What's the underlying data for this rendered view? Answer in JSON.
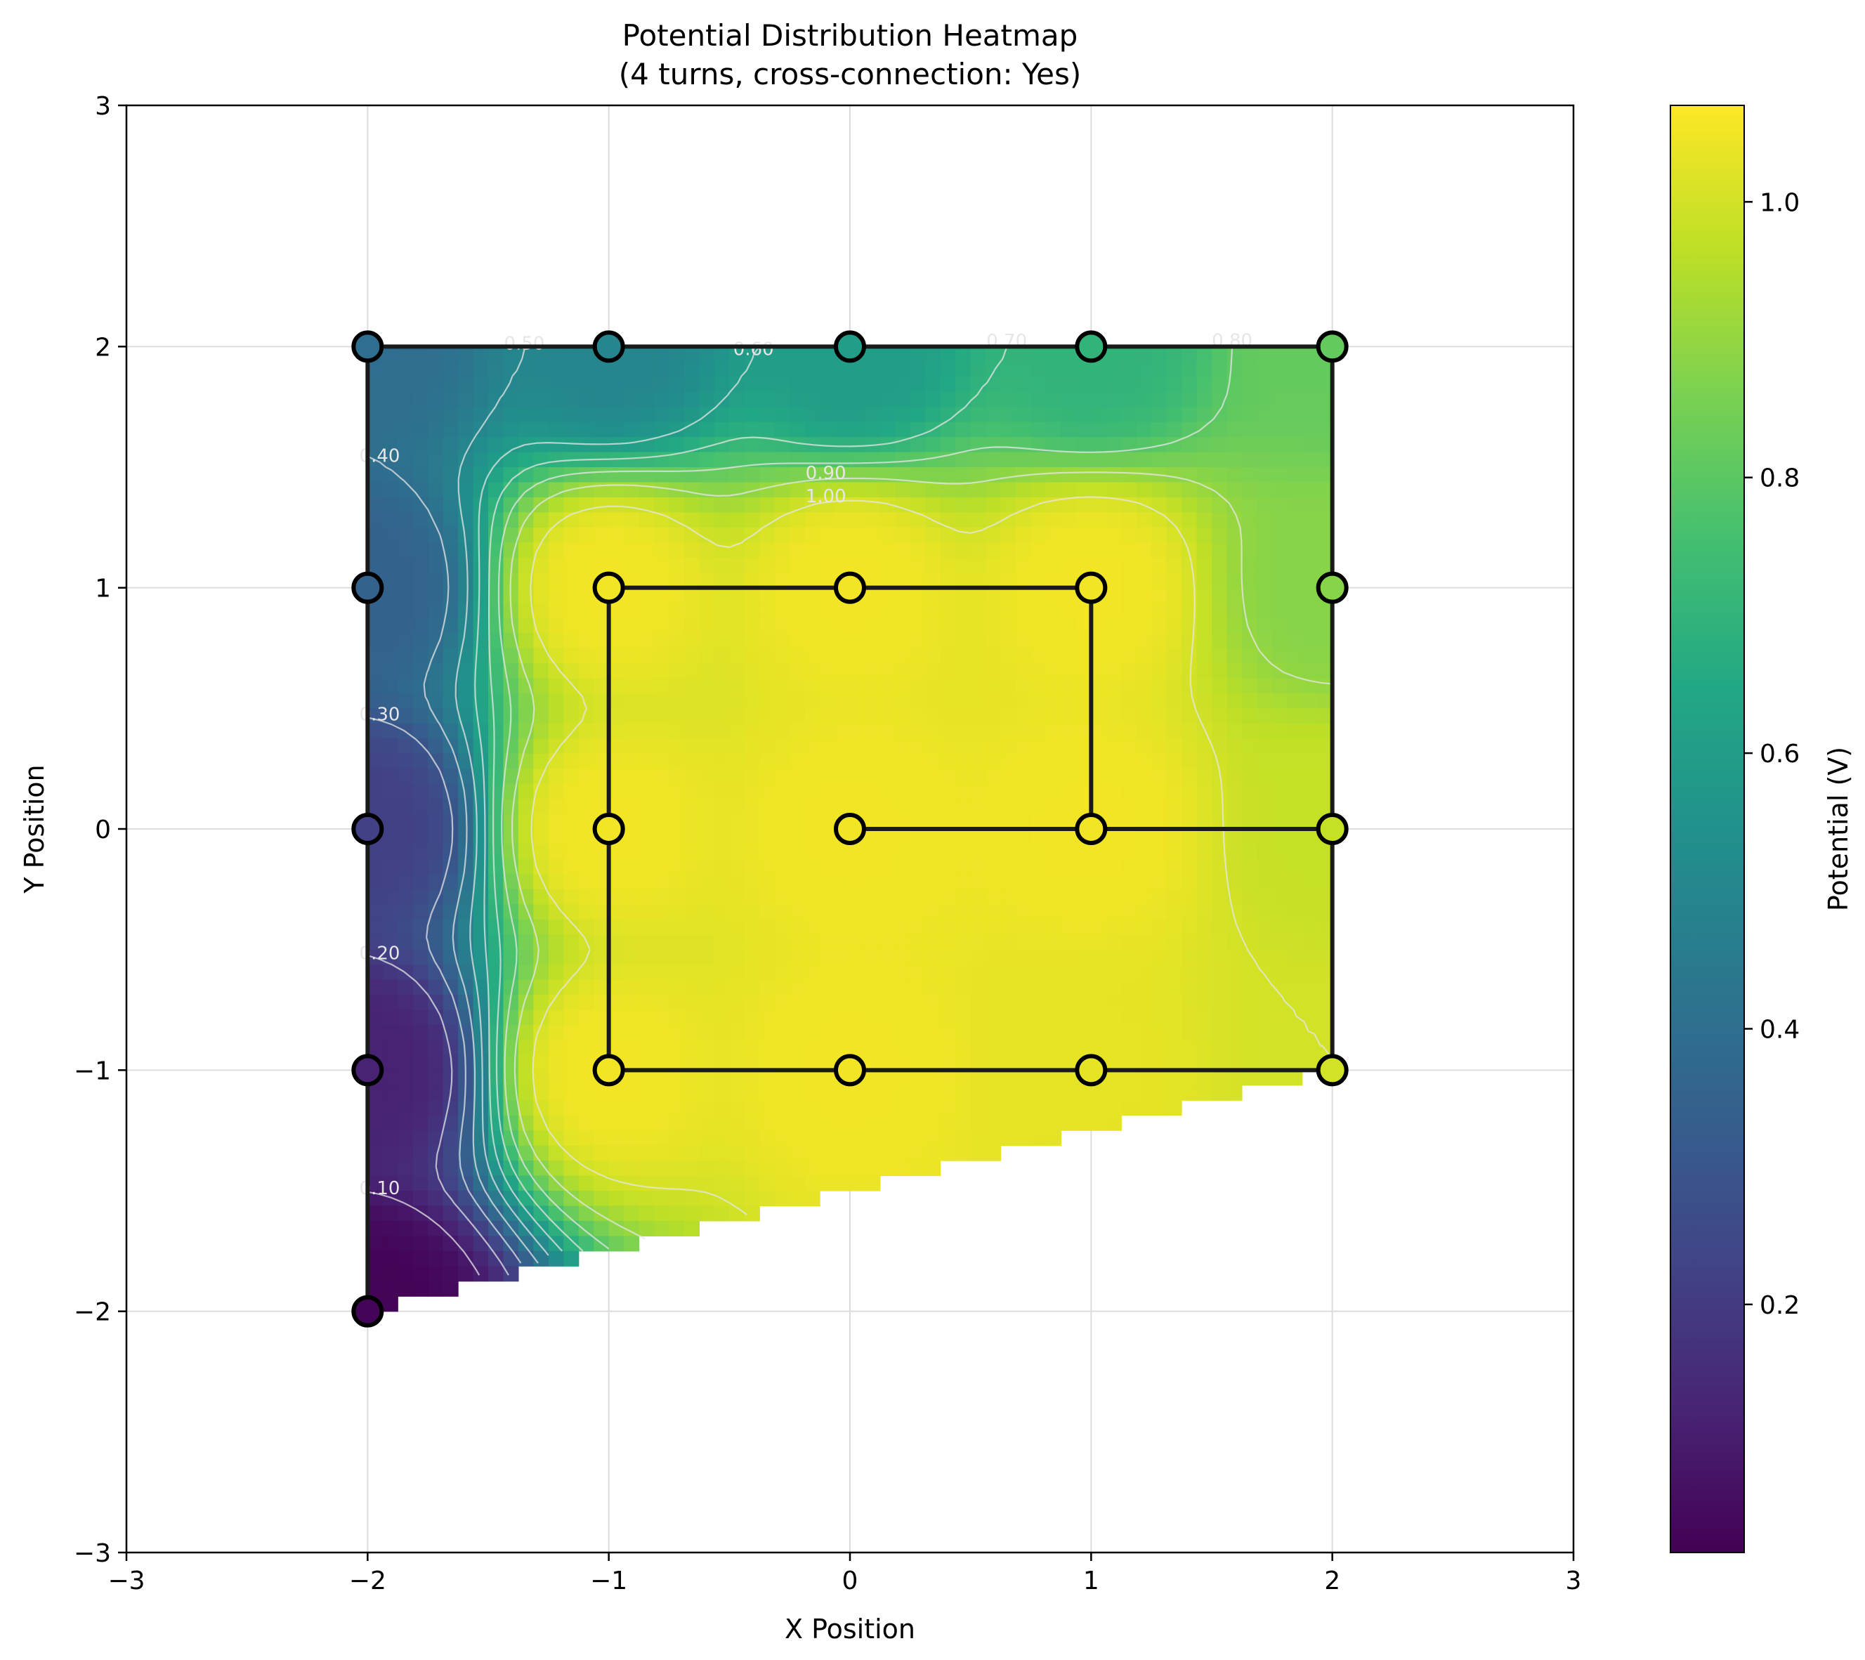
{
  "chart_data": {
    "type": "heatmap",
    "title": "Potential Distribution Heatmap",
    "subtitle": "(4 turns, cross-connection: Yes)",
    "xlabel": "X Position",
    "ylabel": "Y Position",
    "xlim": [
      -3,
      3
    ],
    "ylim": [
      -3,
      3
    ],
    "xticks": [
      -3,
      -2,
      -1,
      0,
      1,
      2,
      3
    ],
    "yticks": [
      -3,
      -2,
      -1,
      0,
      1,
      2,
      3
    ],
    "xtick_labels": [
      "−3",
      "−2",
      "−1",
      "0",
      "1",
      "2",
      "3"
    ],
    "ytick_labels": [
      "−3",
      "−2",
      "−1",
      "0",
      "1",
      "2",
      "3"
    ],
    "grid": true,
    "colormap": "viridis",
    "colorbar": {
      "label": "Potential (V)",
      "range": [
        0.02,
        1.07
      ],
      "ticks": [
        0.2,
        0.4,
        0.6,
        0.8,
        1.0
      ],
      "tick_labels": [
        "0.2",
        "0.4",
        "0.6",
        "0.8",
        "1.0"
      ]
    },
    "contour_levels": [
      {
        "label": "0.10",
        "value": 0.1
      },
      {
        "label": "0.20",
        "value": 0.2
      },
      {
        "label": "0.30",
        "value": 0.3
      },
      {
        "label": "0.40",
        "value": 0.4
      },
      {
        "label": "0.50",
        "value": 0.5
      },
      {
        "label": "0.60",
        "value": 0.6
      },
      {
        "label": "0.70",
        "value": 0.7
      },
      {
        "label": "0.80",
        "value": 0.8
      },
      {
        "label": "0.90",
        "value": 0.9
      },
      {
        "label": "1.00",
        "value": 1.0
      }
    ],
    "nodes": [
      {
        "x": -2,
        "y": 2,
        "v": 0.4
      },
      {
        "x": -1,
        "y": 2,
        "v": 0.5
      },
      {
        "x": 0,
        "y": 2,
        "v": 0.6
      },
      {
        "x": 1,
        "y": 2,
        "v": 0.7
      },
      {
        "x": 2,
        "y": 2,
        "v": 0.82
      },
      {
        "x": -2,
        "y": 1,
        "v": 0.35
      },
      {
        "x": -1,
        "y": 1,
        "v": 1.05
      },
      {
        "x": 0,
        "y": 1,
        "v": 1.05
      },
      {
        "x": 1,
        "y": 1,
        "v": 1.05
      },
      {
        "x": 2,
        "y": 1,
        "v": 0.88
      },
      {
        "x": -2,
        "y": 0,
        "v": 0.22
      },
      {
        "x": -1,
        "y": 0,
        "v": 1.05
      },
      {
        "x": 0,
        "y": 0,
        "v": 1.05
      },
      {
        "x": 1,
        "y": 0,
        "v": 1.05
      },
      {
        "x": 2,
        "y": 0,
        "v": 0.98
      },
      {
        "x": -2,
        "y": -1,
        "v": 0.12
      },
      {
        "x": -1,
        "y": -1,
        "v": 1.05
      },
      {
        "x": 0,
        "y": -1,
        "v": 1.05
      },
      {
        "x": 1,
        "y": -1,
        "v": 1.03
      },
      {
        "x": 2,
        "y": -1,
        "v": 1.0
      },
      {
        "x": -2,
        "y": -2,
        "v": 0.03
      }
    ],
    "connections": [
      [
        [
          -2,
          2
        ],
        [
          2,
          2
        ]
      ],
      [
        [
          -2,
          2
        ],
        [
          -2,
          -2
        ]
      ],
      [
        [
          2,
          2
        ],
        [
          2,
          -1
        ]
      ],
      [
        [
          -1,
          1
        ],
        [
          1,
          1
        ]
      ],
      [
        [
          -1,
          1
        ],
        [
          -1,
          -1
        ]
      ],
      [
        [
          1,
          1
        ],
        [
          1,
          0
        ]
      ],
      [
        [
          0,
          0
        ],
        [
          2,
          0
        ]
      ],
      [
        [
          -1,
          -1
        ],
        [
          2,
          -1
        ]
      ]
    ]
  }
}
